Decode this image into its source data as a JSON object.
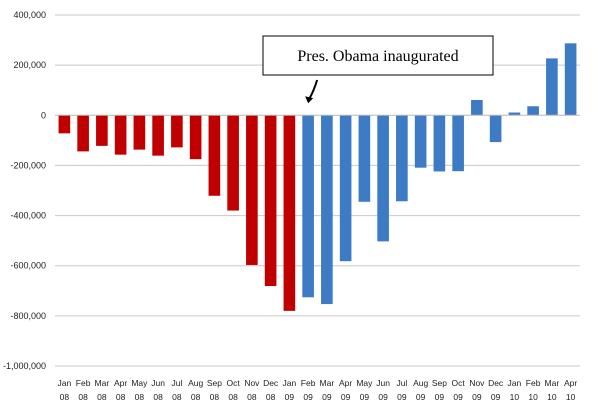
{
  "chart_data": {
    "type": "bar",
    "categories": [
      [
        "Jan",
        "08"
      ],
      [
        "Feb",
        "08"
      ],
      [
        "Mar",
        "08"
      ],
      [
        "Apr",
        "08"
      ],
      [
        "May",
        "08"
      ],
      [
        "Jun",
        "08"
      ],
      [
        "Jul",
        "08"
      ],
      [
        "Aug",
        "08"
      ],
      [
        "Sep",
        "08"
      ],
      [
        "Oct",
        "08"
      ],
      [
        "Nov",
        "08"
      ],
      [
        "Dec",
        "08"
      ],
      [
        "Jan",
        "09"
      ],
      [
        "Feb",
        "09"
      ],
      [
        "Mar",
        "09"
      ],
      [
        "Apr",
        "09"
      ],
      [
        "May",
        "09"
      ],
      [
        "Jun",
        "09"
      ],
      [
        "Jul",
        "09"
      ],
      [
        "Aug",
        "09"
      ],
      [
        "Sep",
        "09"
      ],
      [
        "Oct",
        "09"
      ],
      [
        "Nov",
        "09"
      ],
      [
        "Dec",
        "09"
      ],
      [
        "Jan",
        "10"
      ],
      [
        "Feb",
        "10"
      ],
      [
        "Mar",
        "10"
      ],
      [
        "Apr",
        "10"
      ]
    ],
    "values": [
      -72000,
      -144000,
      -122000,
      -157000,
      -137000,
      -161000,
      -128000,
      -175000,
      -321000,
      -380000,
      -597000,
      -681000,
      -780000,
      -726000,
      -753000,
      -582000,
      -345000,
      -503000,
      -343000,
      -209000,
      -224000,
      -223000,
      61000,
      -107000,
      11000,
      36000,
      227000,
      287000
    ],
    "bar_colors": [
      "#c00000",
      "#c00000",
      "#c00000",
      "#c00000",
      "#c00000",
      "#c00000",
      "#c00000",
      "#c00000",
      "#c00000",
      "#c00000",
      "#c00000",
      "#c00000",
      "#c00000",
      "#3d7cc4",
      "#3d7cc4",
      "#3d7cc4",
      "#3d7cc4",
      "#3d7cc4",
      "#3d7cc4",
      "#3d7cc4",
      "#3d7cc4",
      "#3d7cc4",
      "#3d7cc4",
      "#3d7cc4",
      "#3d7cc4",
      "#3d7cc4",
      "#3d7cc4",
      "#3d7cc4"
    ],
    "ylim": [
      -1000000,
      400000
    ],
    "yticks": [
      400000,
      200000,
      0,
      -200000,
      -400000,
      -600000,
      -800000,
      -1000000
    ],
    "ytick_labels": [
      "400,000",
      "200,000",
      "0",
      "-200,000",
      "-400,000",
      "-600,000",
      "-800,000",
      "-1,000,000"
    ],
    "grid": true,
    "annotation": {
      "text": "Pres. Obama inaugurated",
      "points_to_category": 13
    }
  }
}
